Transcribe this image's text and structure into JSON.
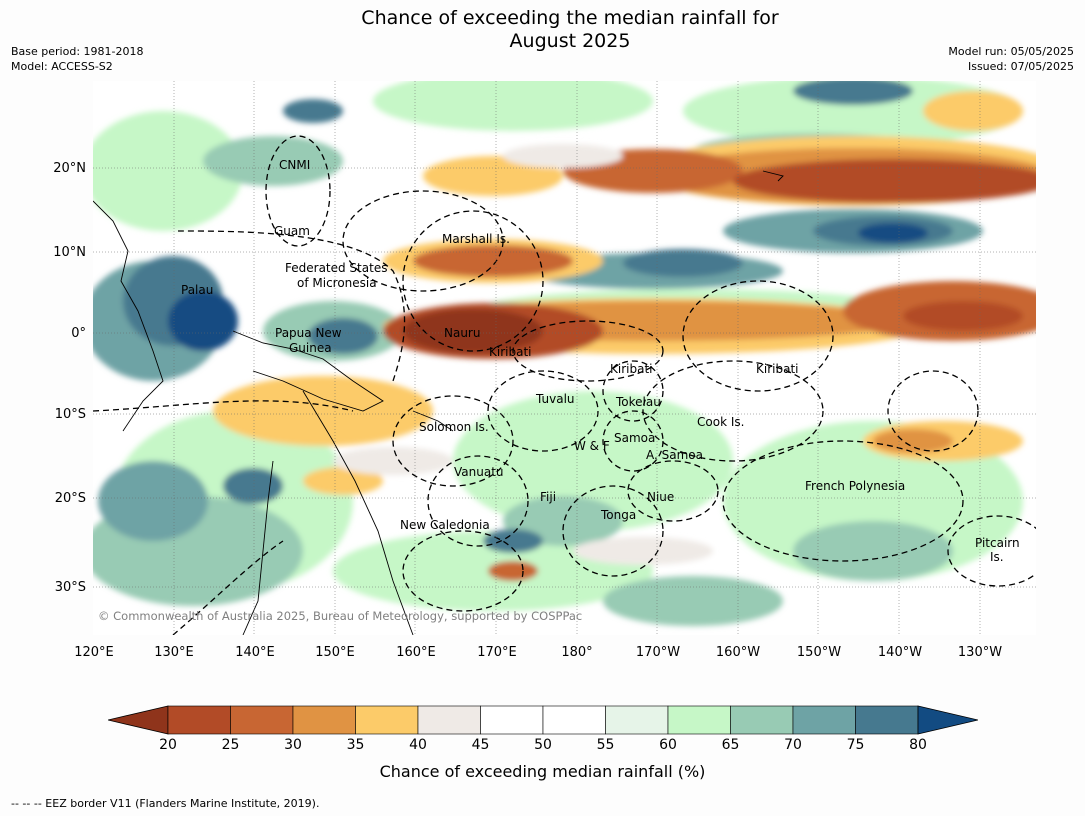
{
  "title_line1": "Chance of exceeding the median rainfall for",
  "title_line2": "August 2025",
  "meta": {
    "base_period": "Base period: 1981-2018",
    "model": "Model: ACCESS-S2",
    "model_run": "Model run: 05/05/2025",
    "issued": "Issued: 07/05/2025"
  },
  "map": {
    "lat_labels": [
      "20°N",
      "10°N",
      "0°",
      "10°S",
      "20°S",
      "30°S"
    ],
    "lon_labels": [
      "120°E",
      "130°E",
      "140°E",
      "150°E",
      "160°E",
      "170°E",
      "180°",
      "170°W",
      "160°W",
      "150°W",
      "140°W",
      "130°W"
    ],
    "copyright": "© Commonwealth of Australia 2025, Bureau of Meteorology, supported by COSPPac",
    "places": [
      "CNMI",
      "Guam",
      "Marshall Is.",
      "Federated States",
      "of Micronesia",
      "Palau",
      "Papua New",
      "Guinea",
      "Nauru",
      "Kiribati",
      "Kiribati",
      "Kiribati",
      "Tuvalu",
      "Tokelau",
      "Solomon Is.",
      "Cook Is.",
      "Samoa",
      "W & F",
      "A. Samoa",
      "Vanuatu",
      "Fiji",
      "Niue",
      "French Polynesia",
      "Tonga",
      "New Caledonia",
      "Pitcairn",
      "Is."
    ]
  },
  "colorbar": {
    "ticks": [
      "20",
      "25",
      "30",
      "35",
      "40",
      "45",
      "50",
      "55",
      "60",
      "65",
      "70",
      "75",
      "80"
    ],
    "colors": [
      "#8f341b",
      "#b24b27",
      "#c86633",
      "#e09343",
      "#fccb69",
      "#efeae6",
      "#ffffff",
      "#ffffff",
      "#e6f4e8",
      "#c6f7c7",
      "#98cbb4",
      "#6ea3a5",
      "#46798f",
      "#124b82"
    ],
    "label": "Chance of exceeding median rainfall (%)"
  },
  "footer": "--  --  -- EEZ border V11 (Flanders Marine Institute, 2019)."
}
